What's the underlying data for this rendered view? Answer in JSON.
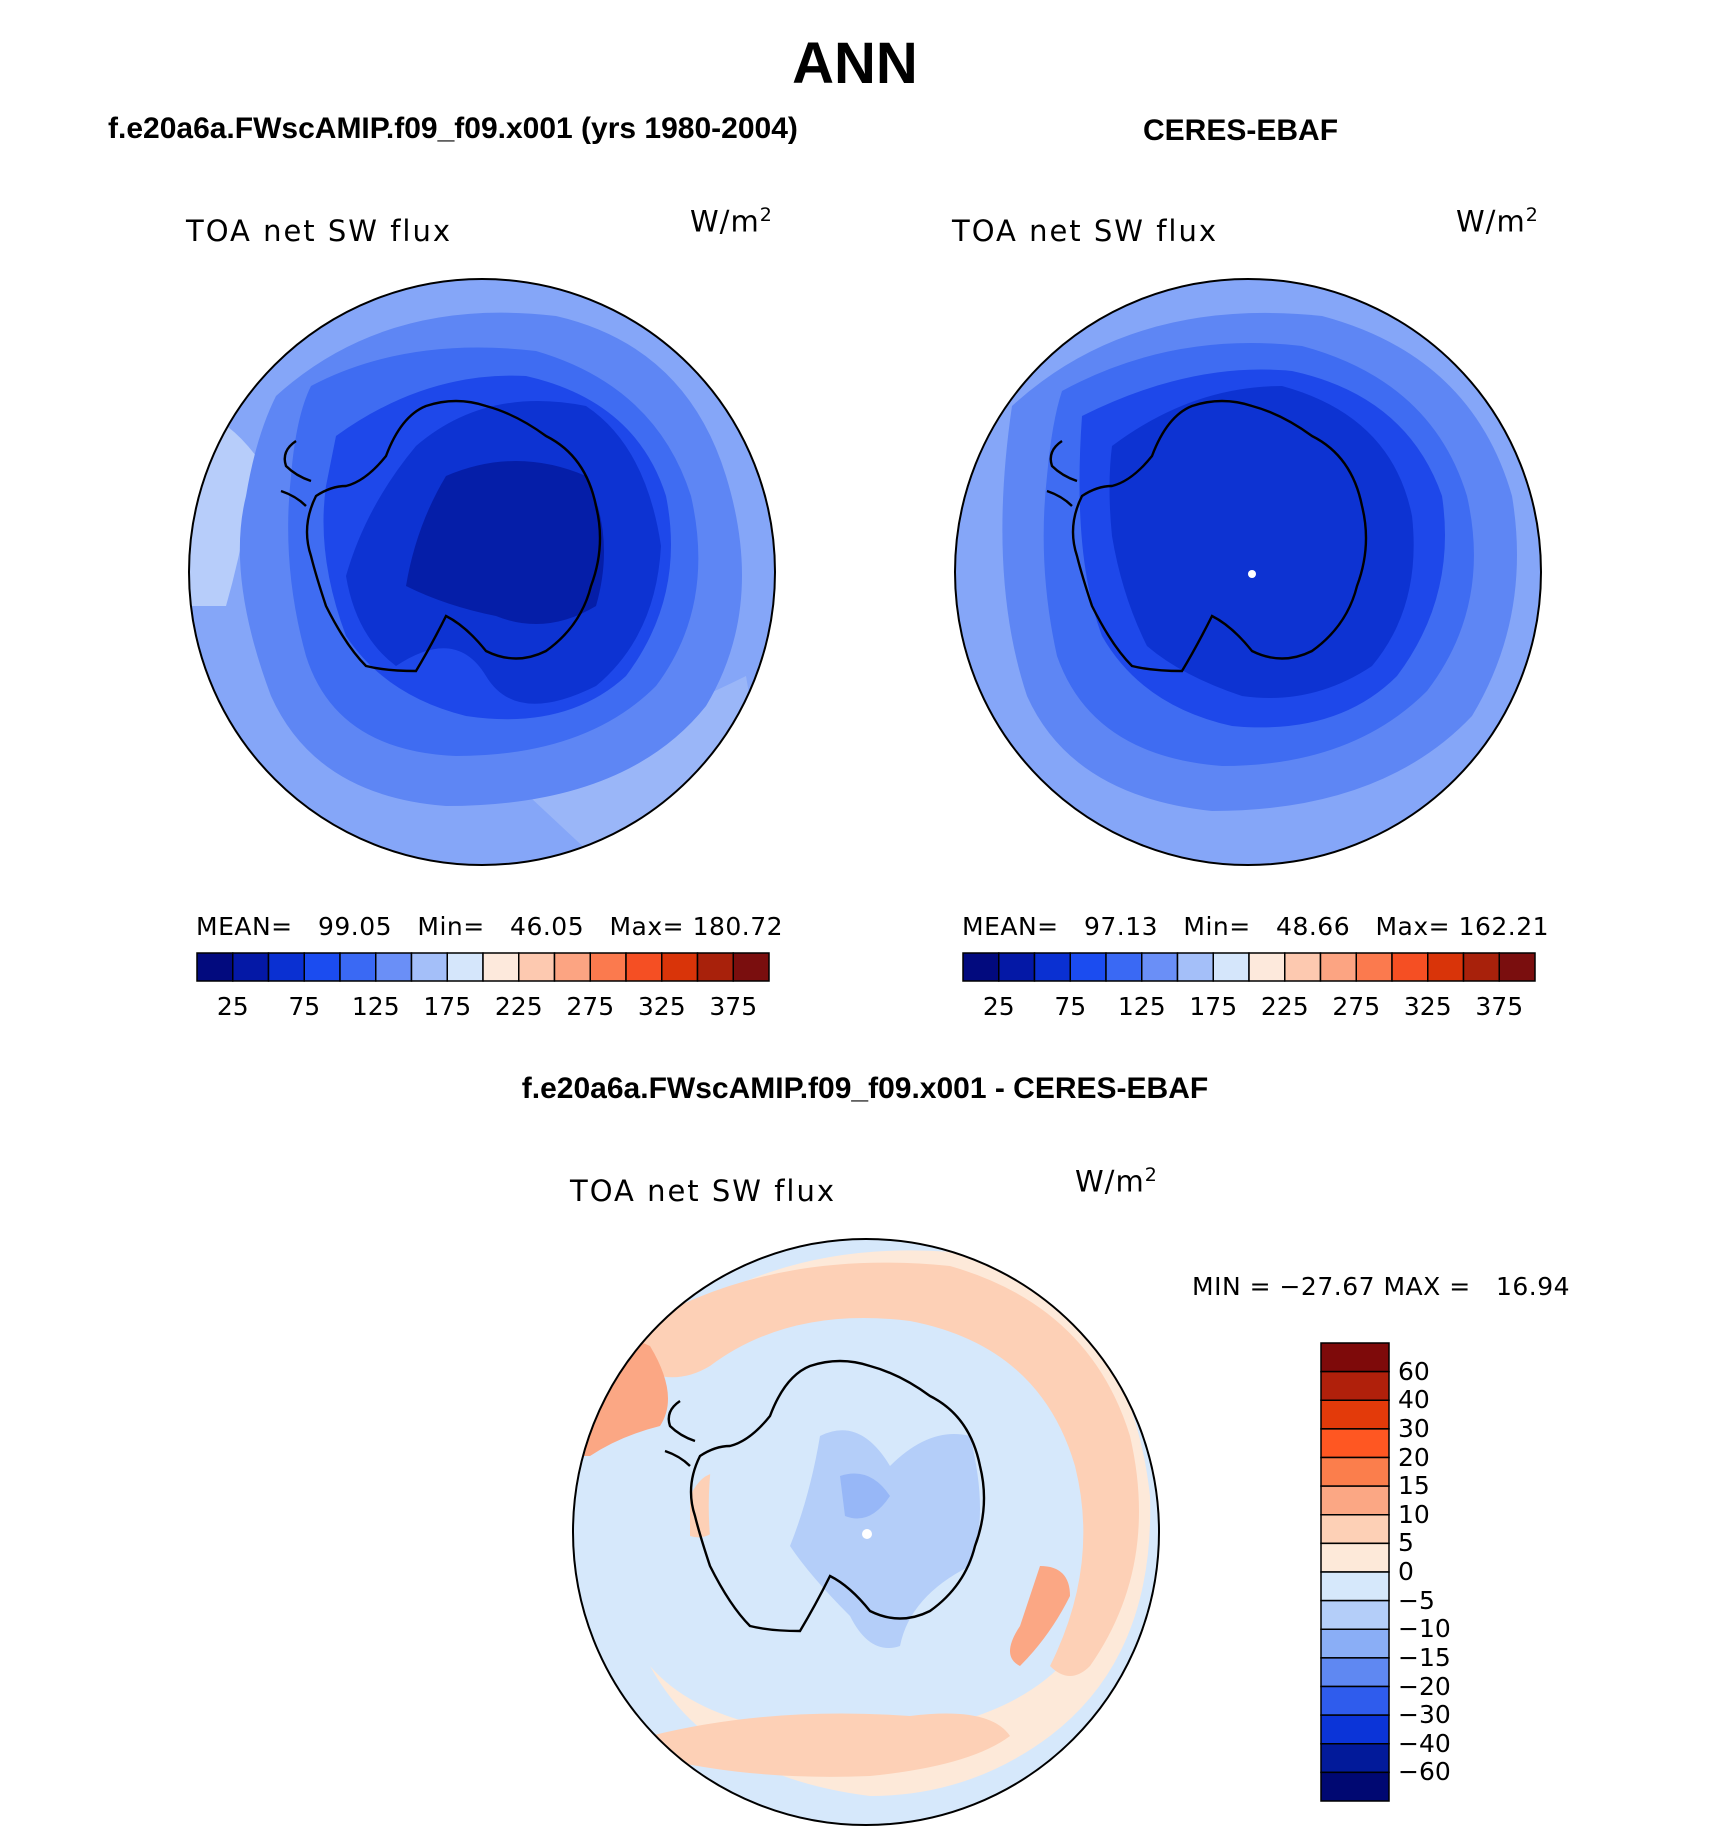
{
  "title": "ANN",
  "panels": [
    {
      "title": "f.e20a6a.FWscAMIP.f09_f09.x001 (yrs 1980-2004)",
      "variable": "TOA net SW flux",
      "units_base": "W/m",
      "units_exp": "2",
      "stats": {
        "mean_label": "MEAN=",
        "mean": "99.05",
        "min_label": "Min=",
        "min": "46.05",
        "max_label": "Max=",
        "max": "180.72"
      }
    },
    {
      "title": "CERES-EBAF",
      "variable": "TOA net SW flux",
      "units_base": "W/m",
      "units_exp": "2",
      "stats": {
        "mean_label": "MEAN=",
        "mean": "97.13",
        "min_label": "Min=",
        "min": "48.66",
        "max_label": "Max=",
        "max": "162.21"
      }
    }
  ],
  "diff_panel": {
    "title": "f.e20a6a.FWscAMIP.f09_f09.x001 - CERES-EBAF",
    "variable": "TOA net SW flux",
    "units_base": "W/m",
    "units_exp": "2",
    "minmax_text": "MIN = −27.67 MAX =   16.94"
  },
  "chart_data": [
    {
      "type": "heatmap",
      "projection": "south polar stereographic",
      "region": "Antarctica / Southern Ocean",
      "title": "f.e20a6a.FWscAMIP.f09_f09.x001 (yrs 1980-2004)",
      "variable": "TOA net SW flux",
      "units": "W/m2",
      "mean": 99.05,
      "min": 46.05,
      "max": 180.72,
      "colorbar_ticks": [
        "25",
        "75",
        "125",
        "175",
        "225",
        "275",
        "325",
        "375"
      ],
      "colorbar_colors": [
        "#020a7e",
        "#0418a6",
        "#0a30d2",
        "#1b4cf0",
        "#3a69f4",
        "#6a8ff7",
        "#a4bff9",
        "#d5e6fb",
        "#fde9dc",
        "#fdc9b0",
        "#fca482",
        "#fb7a4e",
        "#f54f23",
        "#d93409",
        "#a8210b",
        "#7a0e0e"
      ]
    },
    {
      "type": "heatmap",
      "projection": "south polar stereographic",
      "region": "Antarctica / Southern Ocean",
      "title": "CERES-EBAF",
      "variable": "TOA net SW flux",
      "units": "W/m2",
      "mean": 97.13,
      "min": 48.66,
      "max": 162.21,
      "colorbar_ticks": [
        "25",
        "75",
        "125",
        "175",
        "225",
        "275",
        "325",
        "375"
      ],
      "colorbar_colors": [
        "#020a7e",
        "#0418a6",
        "#0a30d2",
        "#1b4cf0",
        "#3a69f4",
        "#6a8ff7",
        "#a4bff9",
        "#d5e6fb",
        "#fde9dc",
        "#fdc9b0",
        "#fca482",
        "#fb7a4e",
        "#f54f23",
        "#d93409",
        "#a8210b",
        "#7a0e0e"
      ]
    },
    {
      "type": "heatmap",
      "projection": "south polar stereographic",
      "region": "Antarctica / Southern Ocean",
      "title": "f.e20a6a.FWscAMIP.f09_f09.x001 - CERES-EBAF",
      "variable": "TOA net SW flux",
      "units": "W/m2",
      "min": -27.67,
      "max": 16.94,
      "colorbar_ticks": [
        "60",
        "40",
        "30",
        "20",
        "15",
        "10",
        "5",
        "0",
        "−5",
        "−10",
        "−15",
        "−20",
        "−30",
        "−40",
        "−60"
      ],
      "colorbar_colors": [
        "#7e0a0a",
        "#b0200b",
        "#e33a0a",
        "#ff5722",
        "#fb7e4c",
        "#fba784",
        "#fdd0b6",
        "#fde9d9",
        "#d6e8fb",
        "#b4cef9",
        "#8aaef6",
        "#5f88f2",
        "#2f5ced",
        "#0b34d8",
        "#021a9a",
        "#000872"
      ]
    }
  ]
}
